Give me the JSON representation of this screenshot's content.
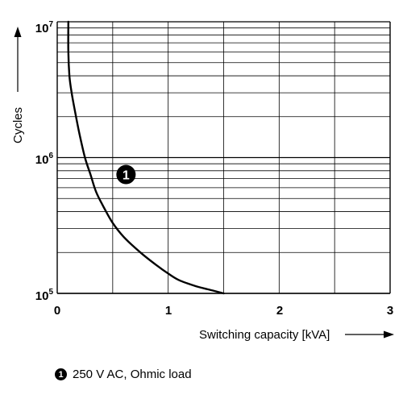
{
  "chart_data": {
    "type": "line",
    "xlabel": "Switching capacity [kVA]",
    "ylabel": "Cycles",
    "xlim": [
      0,
      3
    ],
    "ylim": [
      100000,
      10000000
    ],
    "yscale": "log",
    "grid": true,
    "x_ticks": [
      "0",
      "1",
      "2",
      "3"
    ],
    "y_ticks": [
      {
        "base": "10",
        "exp": "5",
        "value": 100000
      },
      {
        "base": "10",
        "exp": "6",
        "value": 1000000
      },
      {
        "base": "10",
        "exp": "7",
        "value": 10000000
      }
    ],
    "series": [
      {
        "marker": "1",
        "color": "#000000",
        "x": [
          0.1,
          0.1,
          0.11,
          0.13,
          0.16,
          0.2,
          0.25,
          0.3,
          0.35,
          0.42,
          0.5,
          0.6,
          0.75,
          0.9,
          1.0,
          1.1,
          1.25,
          1.4,
          1.5
        ],
        "y": [
          10000000,
          6000000,
          4000000,
          3000000,
          2200000,
          1500000,
          1000000,
          750000,
          560000,
          430000,
          330000,
          260000,
          200000,
          160000,
          140000,
          125000,
          113000,
          105000,
          100000
        ]
      }
    ],
    "annotations": [
      {
        "text": "1",
        "x": 0.62,
        "y": 750000
      }
    ],
    "legend_entries": [
      {
        "marker": "1",
        "text": "250 V AC, Ohmic load"
      }
    ]
  }
}
